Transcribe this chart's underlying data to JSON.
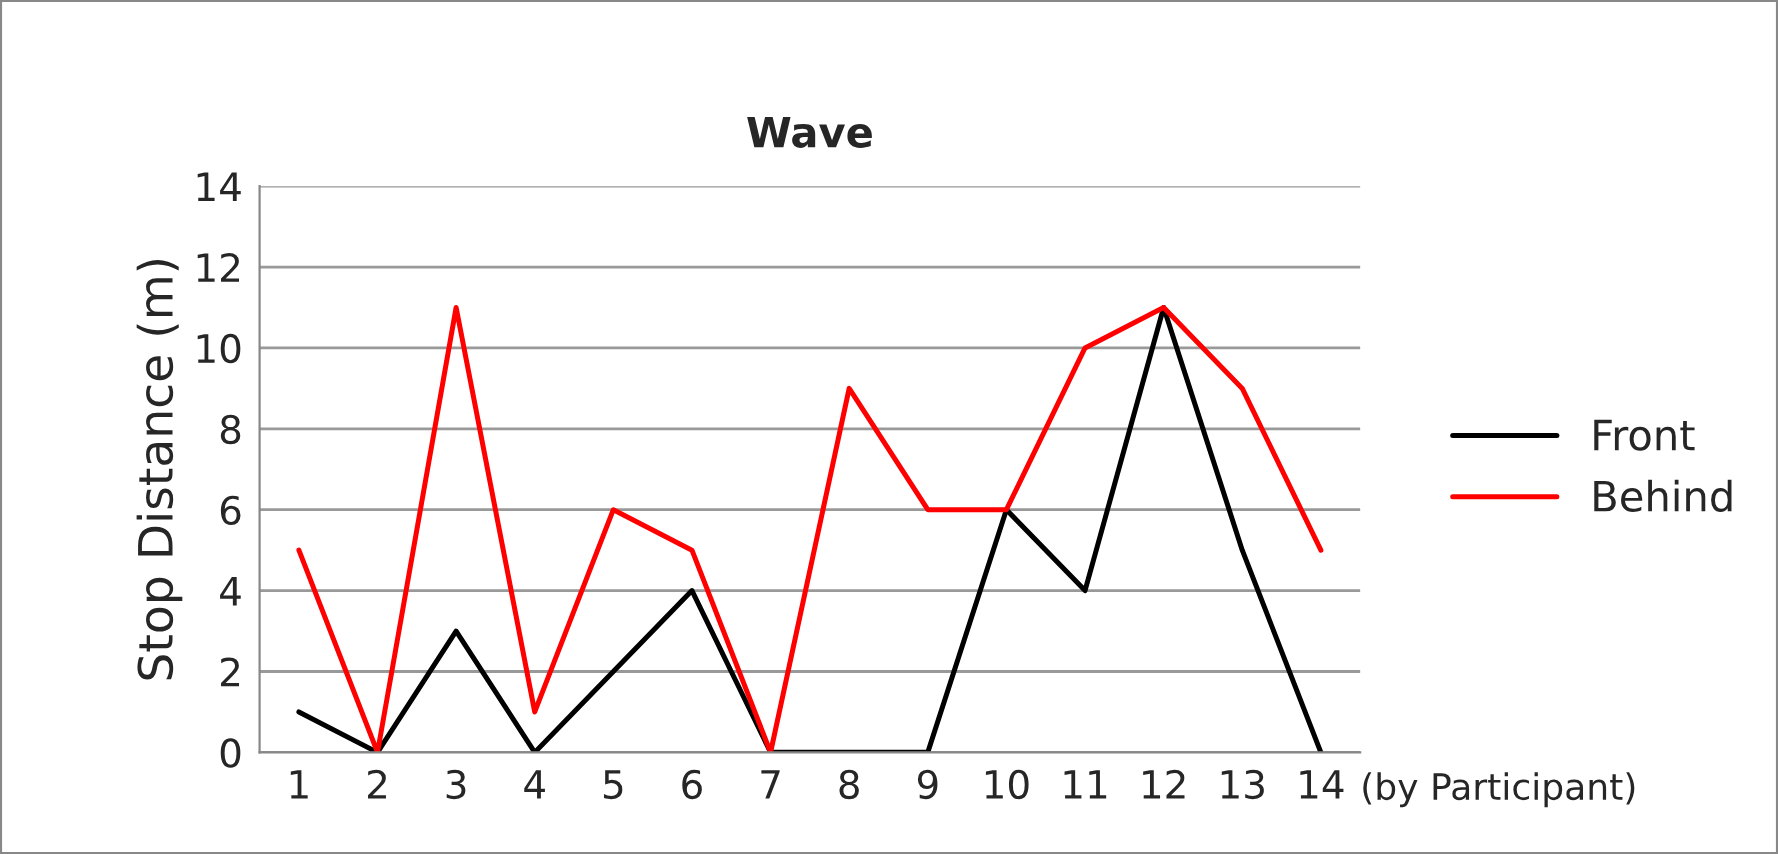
{
  "chart_data": {
    "type": "line",
    "title": "Wave",
    "xlabel": "(by Participant)",
    "ylabel": "Stop Distance (m)",
    "categories": [
      "1",
      "2",
      "3",
      "4",
      "5",
      "6",
      "7",
      "8",
      "9",
      "10",
      "11",
      "12",
      "13",
      "14"
    ],
    "series": [
      {
        "name": "Front",
        "color": "#000000",
        "values": [
          1,
          0,
          3,
          0,
          2,
          4,
          0,
          0,
          0,
          6,
          4,
          11,
          5,
          0
        ]
      },
      {
        "name": "Behind",
        "color": "#ff0000",
        "values": [
          5,
          0,
          11,
          1,
          6,
          5,
          0,
          9,
          6,
          6,
          10,
          11,
          9,
          5
        ]
      }
    ],
    "ylim": [
      0,
      14
    ],
    "yticks": [
      0,
      2,
      4,
      6,
      8,
      10,
      12,
      14
    ],
    "grid": "y",
    "legend": "right",
    "marker": "none",
    "line_style": "solid"
  }
}
